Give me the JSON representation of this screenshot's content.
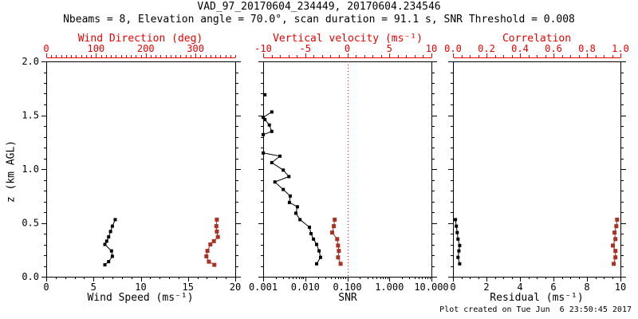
{
  "header": {
    "title": "VAD_97_20170604_234449, 20170604.234546",
    "subtitle": "Nbeams = 8, Elevation angle = 70.0°, scan duration = 91.1 s, SNR Threshold = 0.008"
  },
  "footer": {
    "created": "Plot created on Tue Jun  6 23:50:45 2017"
  },
  "colors": {
    "axis_red": "#ee0000",
    "data_red": "#a93226",
    "black": "#000000",
    "background": "#ffffff"
  },
  "chart_data": {
    "type": "line",
    "title": "VAD_97_20170604_234449, 20170604.234546",
    "y_axis": {
      "label": "z (km AGL)",
      "min": 0,
      "max": 2,
      "major_ticks": [
        0.0,
        0.5,
        1.0,
        1.5,
        2.0
      ],
      "tick_labels": [
        "0.0",
        "0.5",
        "1.0",
        "1.5",
        "2.0"
      ],
      "minor_step": 0.1
    },
    "panels": [
      {
        "id": "wind",
        "x_bottom": {
          "label": "Wind Speed (ms⁻¹)",
          "scale": "linear",
          "min": 0,
          "max": 20,
          "major_ticks": [
            0,
            5,
            10,
            15,
            20
          ],
          "tick_labels": [
            "0",
            "5",
            "10",
            "15",
            "20"
          ],
          "minor_step": 1
        },
        "x_top": {
          "label": "Wind Direction (deg)",
          "scale": "linear",
          "min": 0,
          "max": 380,
          "major_ticks": [
            0,
            100,
            200,
            300
          ],
          "tick_labels": [
            "0",
            "100",
            "200",
            "300"
          ],
          "minor_step": 10
        },
        "series": [
          {
            "name": "wind-speed",
            "axis": "bottom",
            "color": "black",
            "points": [
              [
                7.3,
                0.53
              ],
              [
                7.0,
                0.47
              ],
              [
                6.8,
                0.42
              ],
              [
                6.6,
                0.37
              ],
              [
                6.4,
                0.33
              ],
              [
                6.2,
                0.3
              ],
              [
                6.9,
                0.24
              ],
              [
                7.0,
                0.19
              ],
              [
                6.6,
                0.14
              ],
              [
                6.2,
                0.11
              ]
            ]
          },
          {
            "name": "wind-direction",
            "axis": "top",
            "color": "red",
            "points": [
              [
                343,
                0.53
              ],
              [
                342,
                0.47
              ],
              [
                343,
                0.42
              ],
              [
                345,
                0.37
              ],
              [
                337,
                0.33
              ],
              [
                330,
                0.3
              ],
              [
                324,
                0.24
              ],
              [
                322,
                0.19
              ],
              [
                327,
                0.14
              ],
              [
                338,
                0.11
              ]
            ]
          }
        ]
      },
      {
        "id": "snr",
        "x_bottom": {
          "label": "SNR",
          "scale": "log",
          "min": 0.001,
          "max": 10,
          "major_ticks": [
            0.001,
            0.01,
            0.1,
            1,
            10
          ],
          "tick_labels": [
            "0.001",
            "0.010",
            "0.100",
            "1.000",
            "10.000"
          ]
        },
        "x_top": {
          "label": "Vertical velocity (ms⁻¹)",
          "scale": "linear",
          "min": -10,
          "max": 10,
          "major_ticks": [
            -10,
            -5,
            0,
            5,
            10
          ],
          "tick_labels": [
            "-10",
            "-5",
            "0",
            "5",
            "10"
          ],
          "minor_step": 1
        },
        "ref_line": {
          "axis": "top",
          "value": 0,
          "style": "dotted",
          "color": "red"
        },
        "series": [
          {
            "name": "snr-isolated",
            "axis": "bottom",
            "color": "black",
            "points": [
              [
                0.0011,
                1.69
              ]
            ]
          },
          {
            "name": "snr-upper",
            "axis": "bottom",
            "color": "black",
            "points": [
              [
                0.0016,
                1.53
              ],
              [
                0.001,
                1.48
              ],
              [
                0.0011,
                1.46
              ],
              [
                0.0014,
                1.41
              ],
              [
                0.0016,
                1.35
              ],
              [
                0.001,
                1.32
              ]
            ]
          },
          {
            "name": "snr-profile",
            "axis": "bottom",
            "color": "black",
            "points": [
              [
                0.001,
                1.15
              ],
              [
                0.0025,
                1.12
              ],
              [
                0.0016,
                1.06
              ],
              [
                0.003,
                0.99
              ],
              [
                0.0041,
                0.93
              ],
              [
                0.0019,
                0.88
              ],
              [
                0.003,
                0.81
              ],
              [
                0.0044,
                0.75
              ],
              [
                0.0042,
                0.69
              ],
              [
                0.0065,
                0.65
              ],
              [
                0.006,
                0.59
              ],
              [
                0.0075,
                0.53
              ],
              [
                0.0126,
                0.46
              ],
              [
                0.0137,
                0.4
              ],
              [
                0.0157,
                0.35
              ],
              [
                0.0186,
                0.3
              ],
              [
                0.0213,
                0.24
              ],
              [
                0.0232,
                0.18
              ],
              [
                0.0186,
                0.12
              ]
            ]
          },
          {
            "name": "vertical-velocity",
            "axis": "top",
            "color": "red",
            "points": [
              [
                -1.5,
                0.53
              ],
              [
                -1.6,
                0.47
              ],
              [
                -1.8,
                0.41
              ],
              [
                -1.2,
                0.35
              ],
              [
                -1.1,
                0.29
              ],
              [
                -1.0,
                0.24
              ],
              [
                -1.1,
                0.18
              ],
              [
                -0.8,
                0.12
              ]
            ]
          }
        ]
      },
      {
        "id": "residual",
        "x_bottom": {
          "label": "Residual (ms⁻¹)",
          "scale": "linear",
          "min": 0,
          "max": 10,
          "major_ticks": [
            0,
            2,
            4,
            6,
            8,
            10
          ],
          "tick_labels": [
            "0",
            "2",
            "4",
            "6",
            "8",
            "10"
          ],
          "minor_step": 0.5
        },
        "x_top": {
          "label": "Correlation",
          "scale": "linear",
          "min": 0,
          "max": 1,
          "major_ticks": [
            0,
            0.2,
            0.4,
            0.6,
            0.8,
            1.0
          ],
          "tick_labels": [
            "0.0",
            "0.2",
            "0.4",
            "0.6",
            "0.8",
            "1.0"
          ],
          "minor_step": 0.05
        },
        "series": [
          {
            "name": "residual",
            "axis": "bottom",
            "color": "black",
            "points": [
              [
                0.15,
                0.53
              ],
              [
                0.2,
                0.47
              ],
              [
                0.25,
                0.41
              ],
              [
                0.3,
                0.35
              ],
              [
                0.4,
                0.29
              ],
              [
                0.35,
                0.24
              ],
              [
                0.3,
                0.18
              ],
              [
                0.4,
                0.12
              ]
            ]
          },
          {
            "name": "correlation",
            "axis": "top",
            "color": "red",
            "points": [
              [
                0.98,
                0.53
              ],
              [
                0.975,
                0.47
              ],
              [
                0.965,
                0.41
              ],
              [
                0.97,
                0.35
              ],
              [
                0.955,
                0.29
              ],
              [
                0.97,
                0.24
              ],
              [
                0.97,
                0.18
              ],
              [
                0.96,
                0.12
              ]
            ]
          }
        ]
      }
    ]
  }
}
